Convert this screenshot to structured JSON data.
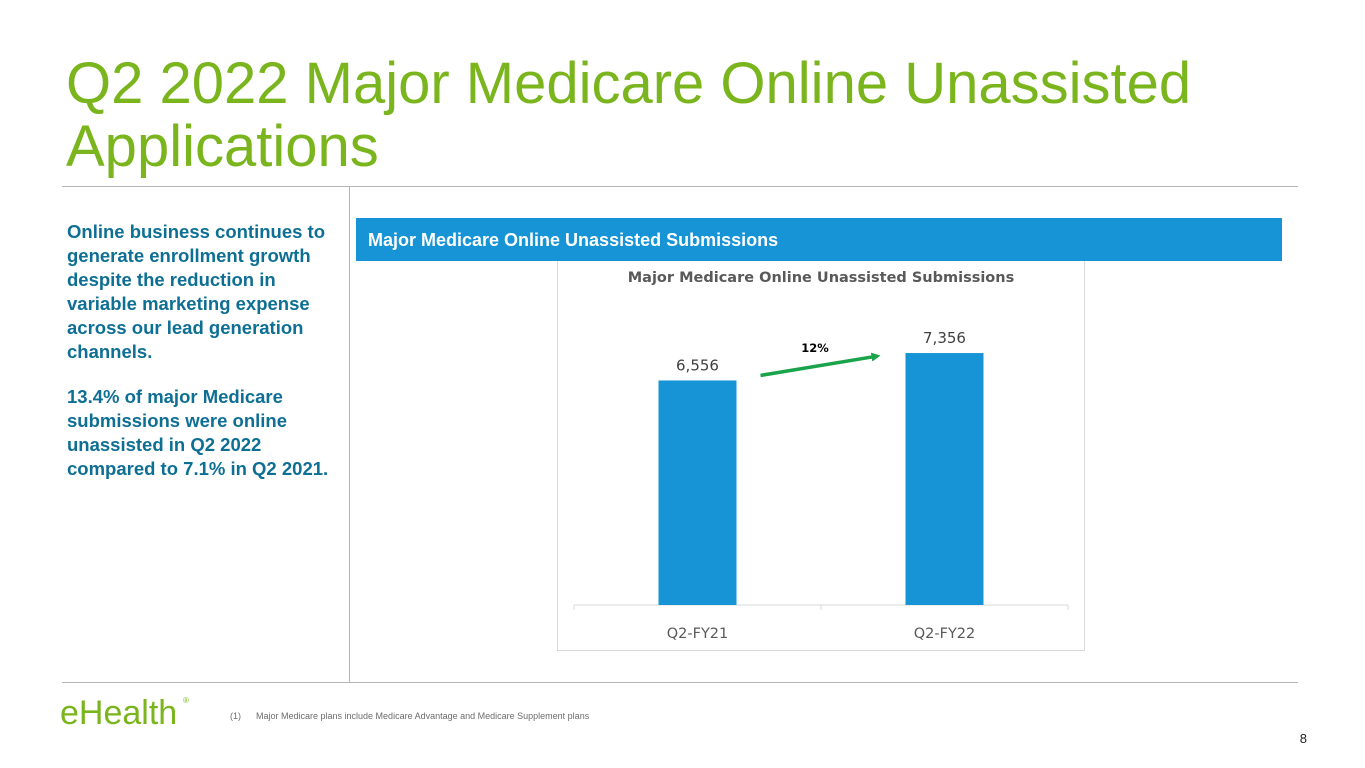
{
  "slide": {
    "title": "Q2 2022 Major Medicare Online Unassisted Applications",
    "page_number": "8"
  },
  "left_panel": {
    "paragraph_1": "Online business continues to generate enrollment growth despite the reduction in variable marketing expense across our lead generation channels.",
    "paragraph_2": "13.4% of major Medicare submissions were online unassisted in Q2 2022 compared to 7.1% in Q2 2021."
  },
  "banner": {
    "label": "Major Medicare Online Unassisted Submissions"
  },
  "footer": {
    "logo_text": "eHealth",
    "logo_mark": "®",
    "footnote_number": "(1)",
    "footnote_text": "Major Medicare plans include Medicare Advantage and Medicare Supplement plans"
  },
  "colors": {
    "title_green": "#7ab51d",
    "body_blue": "#0e6f95",
    "banner_blue": "#1694d6",
    "bar_blue": "#1694d6",
    "arrow_green": "#1aa34a",
    "rule_gray": "#b3b3b3"
  },
  "chart_data": {
    "type": "bar",
    "title": "Major Medicare Online Unassisted Submissions",
    "categories": [
      "Q2-FY21",
      "Q2-FY22"
    ],
    "values": [
      6556,
      7356
    ],
    "value_labels": [
      "6,556",
      "7,356"
    ],
    "xlabel": "",
    "ylabel": "",
    "ylim": [
      0,
      8000
    ],
    "grid": false,
    "legend": "none",
    "annotations": [
      {
        "type": "growth-arrow",
        "from": "Q2-FY21",
        "to": "Q2-FY22",
        "label": "12%"
      }
    ]
  }
}
